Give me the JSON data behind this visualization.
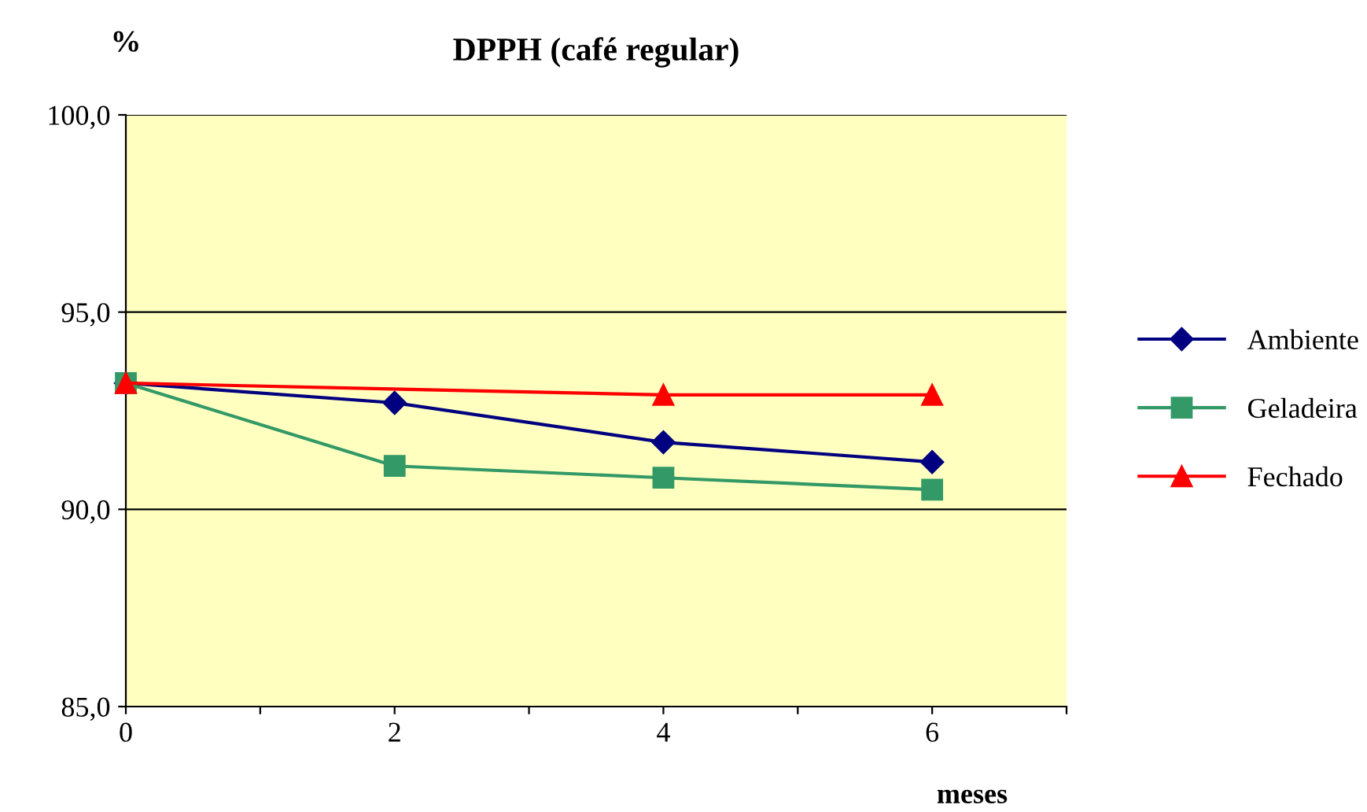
{
  "chart_data": {
    "type": "line",
    "title": "DPPH (café regular)",
    "ylabel": "%",
    "xlabel": "meses",
    "x": [
      0,
      2,
      4,
      6
    ],
    "series": [
      {
        "name": "Ambiente",
        "color": "#000080",
        "marker": "diamond",
        "values": [
          93.2,
          92.7,
          91.7,
          91.2
        ]
      },
      {
        "name": "Geladeira",
        "color": "#339966",
        "marker": "square",
        "values": [
          93.2,
          91.1,
          90.8,
          90.5
        ]
      },
      {
        "name": "Fechado",
        "color": "#ff0000",
        "marker": "triangle",
        "x": [
          0,
          4,
          6
        ],
        "values": [
          93.2,
          92.9,
          92.9
        ]
      }
    ],
    "xlim": [
      0,
      7
    ],
    "xticks": [
      0,
      {
        "value": 1,
        "label": null
      },
      2,
      {
        "value": 3,
        "label": null
      },
      4,
      {
        "value": 5,
        "label": null
      },
      6,
      {
        "value": 7,
        "label": null
      }
    ],
    "ylim": [
      85,
      100
    ],
    "yticks": [
      {
        "value": 85,
        "label": "85,0"
      },
      {
        "value": 90,
        "label": "90,0"
      },
      {
        "value": 95,
        "label": "95,0"
      },
      {
        "value": 100,
        "label": "100,0"
      }
    ],
    "grid": "y",
    "legend": "right",
    "line_style": "solid"
  }
}
